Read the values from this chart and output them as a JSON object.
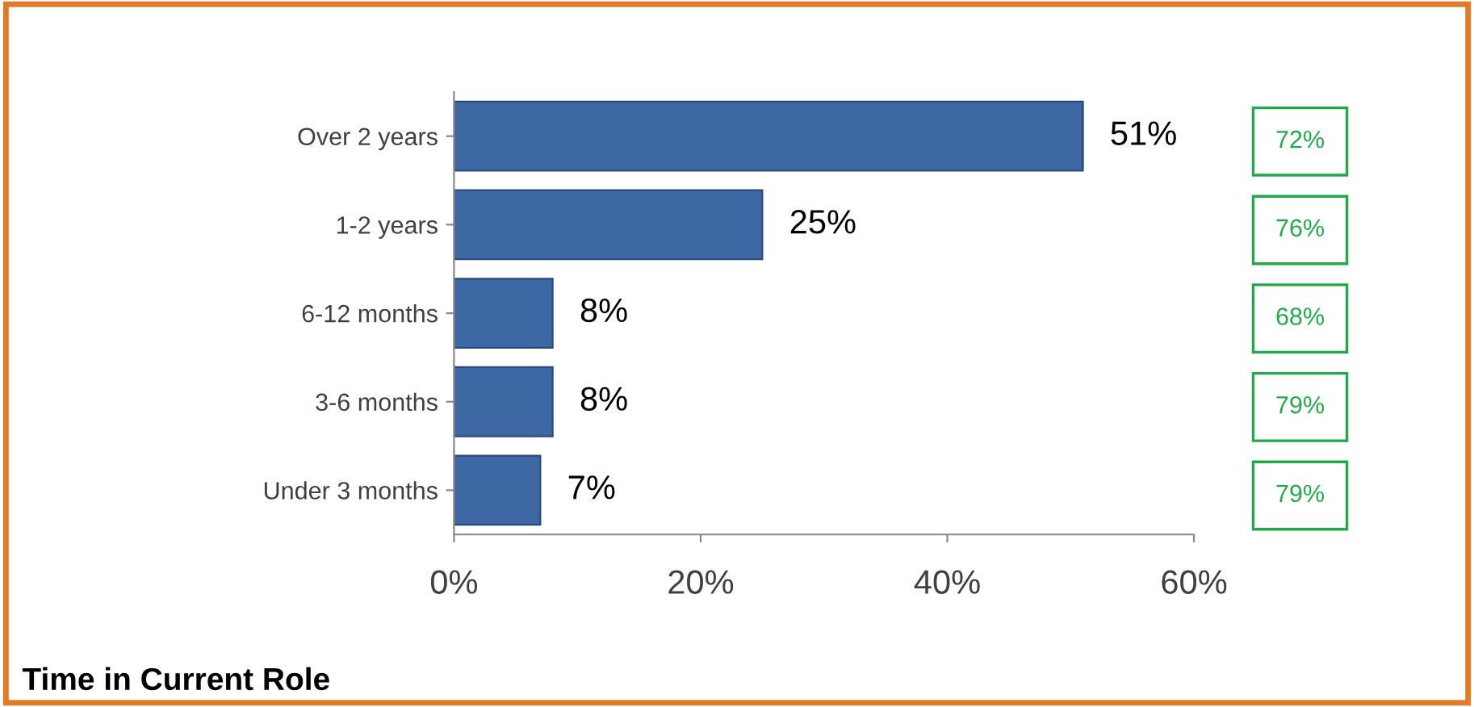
{
  "chart_data": {
    "type": "bar",
    "orientation": "horizontal",
    "title": "Time in Current Role",
    "categories": [
      "Over 2 years",
      "1-2 years",
      "6-12 months",
      "3-6 months",
      "Under 3 months"
    ],
    "values": [
      51,
      25,
      8,
      8,
      7
    ],
    "color": "#3d68a3",
    "value_labels": [
      "51%",
      "25%",
      "8%",
      "8%",
      "7%"
    ],
    "xlim": [
      0,
      60
    ],
    "xticks": [
      {
        "value": 0,
        "label": "0%"
      },
      {
        "value": 20,
        "label": "20%"
      },
      {
        "value": 40,
        "label": "40%"
      },
      {
        "value": 60,
        "label": "60%"
      }
    ],
    "annotations": [
      "72%",
      "76%",
      "68%",
      "79%",
      "79%"
    ],
    "grid": false,
    "legend": false
  }
}
